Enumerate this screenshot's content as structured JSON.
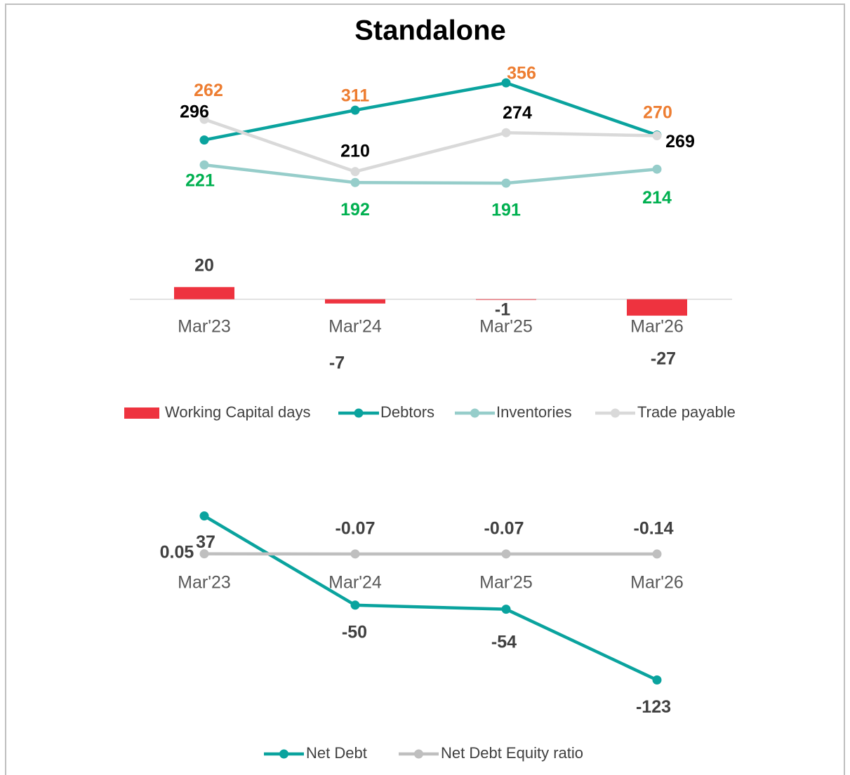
{
  "chart_data": [
    {
      "type": "combo",
      "title": "Standalone",
      "categories": [
        "Mar'23",
        "Mar'24",
        "Mar'25",
        "Mar'26"
      ],
      "ylim": [
        -50,
        400
      ],
      "series": [
        {
          "name": "Working Capital days",
          "type": "bar",
          "color": "#ee333f",
          "label_color": "#404040",
          "values": [
            20,
            -7,
            -1,
            -27
          ]
        },
        {
          "name": "Debtors",
          "type": "line",
          "color": "#0aa39e",
          "label_color": "#ed7d31",
          "values": [
            262,
            311,
            356,
            270
          ]
        },
        {
          "name": "Inventories",
          "type": "line",
          "color": "#96cdca",
          "label_color": "#00b050",
          "values": [
            221,
            192,
            191,
            214
          ]
        },
        {
          "name": "Trade payable",
          "type": "line",
          "color": "#d9d9d9",
          "label_color": "#000000",
          "values": [
            296,
            210,
            274,
            269
          ]
        }
      ]
    },
    {
      "type": "line",
      "categories": [
        "Mar'23",
        "Mar'24",
        "Mar'25",
        "Mar'26"
      ],
      "ylim": [
        -150,
        60
      ],
      "series": [
        {
          "name": "Net Debt",
          "color": "#0aa39e",
          "label_color": "#404040",
          "values": [
            37,
            -50,
            -54,
            -123
          ]
        },
        {
          "name": "Net Debt Equity ratio",
          "color": "#bfbfbf",
          "label_color": "#404040",
          "values": [
            0.05,
            -0.07,
            -0.07,
            -0.14
          ]
        }
      ]
    }
  ]
}
